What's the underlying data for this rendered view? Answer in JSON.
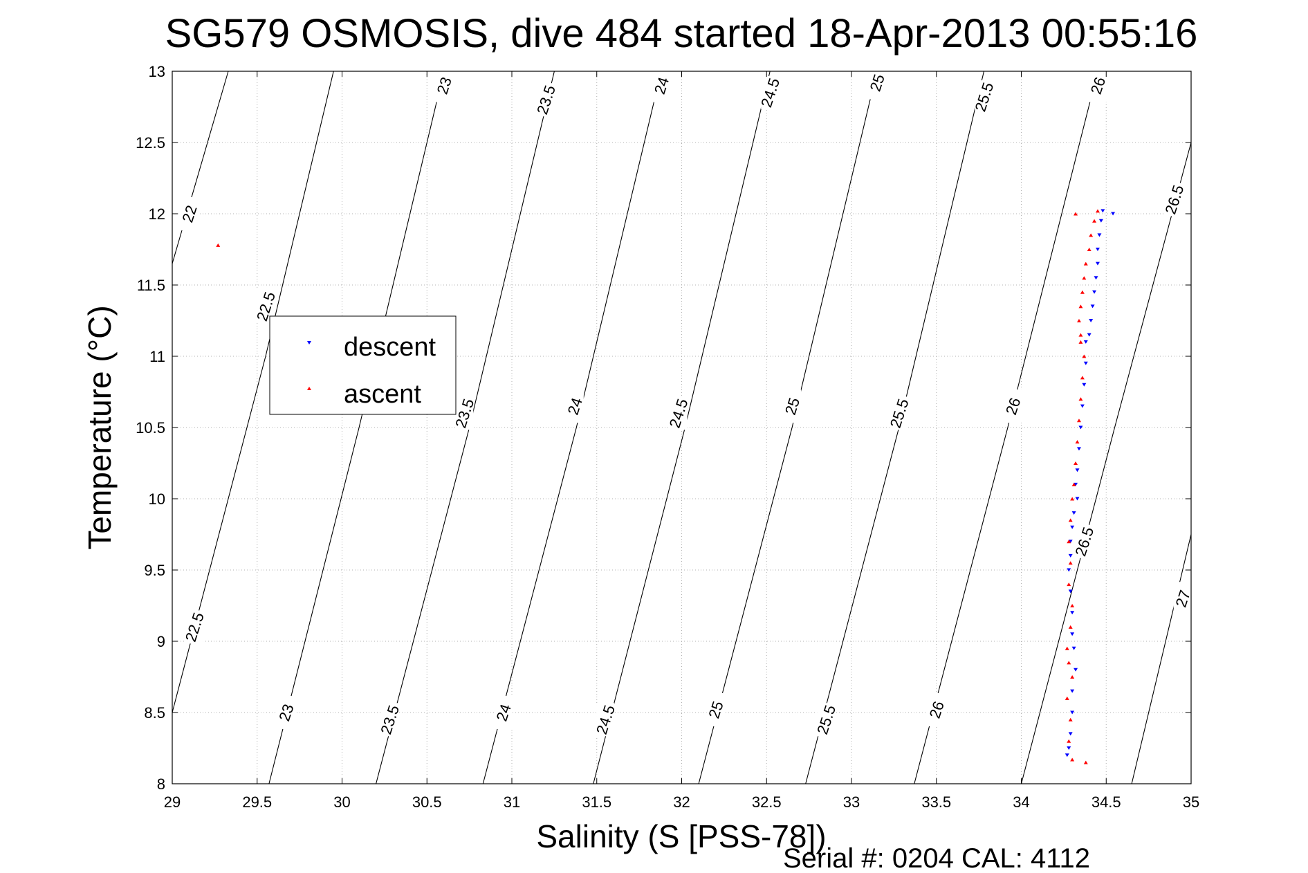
{
  "chart_data": {
    "type": "scatter",
    "title": "SG579 OSMOSIS, dive 484 started 18-Apr-2013 00:55:16",
    "xlabel": "Salinity (S [PSS-78])",
    "ylabel": "Temperature (°C)",
    "xlim": [
      29,
      35
    ],
    "ylim": [
      8,
      13
    ],
    "xticks": [
      29,
      29.5,
      30,
      30.5,
      31,
      31.5,
      32,
      32.5,
      33,
      33.5,
      34,
      34.5,
      35
    ],
    "xtick_labels": [
      "29",
      "29.5",
      "30",
      "30.5",
      "31",
      "31.5",
      "32",
      "32.5",
      "33",
      "33.5",
      "34",
      "34.5",
      "35"
    ],
    "yticks": [
      8,
      8.5,
      9,
      9.5,
      10,
      10.5,
      11,
      11.5,
      12,
      12.5,
      13
    ],
    "ytick_labels": [
      "8",
      "8.5",
      "9",
      "9.5",
      "10",
      "10.5",
      "11",
      "11.5",
      "12",
      "12.5",
      "13"
    ],
    "grid": true,
    "legend_position": "upper-left",
    "colors": {
      "descent": "#0000ff",
      "ascent": "#ff0000",
      "contour": "#000000"
    },
    "series": [
      {
        "name": "descent",
        "marker": "triangle-down",
        "points": [
          [
            34.48,
            12.02
          ],
          [
            34.47,
            11.95
          ],
          [
            34.46,
            11.85
          ],
          [
            34.45,
            11.75
          ],
          [
            34.45,
            11.65
          ],
          [
            34.44,
            11.55
          ],
          [
            34.43,
            11.45
          ],
          [
            34.42,
            11.35
          ],
          [
            34.41,
            11.25
          ],
          [
            34.4,
            11.15
          ],
          [
            34.38,
            11.1
          ],
          [
            34.38,
            10.95
          ],
          [
            34.37,
            10.8
          ],
          [
            34.36,
            10.65
          ],
          [
            34.35,
            10.5
          ],
          [
            34.34,
            10.35
          ],
          [
            34.33,
            10.2
          ],
          [
            34.32,
            10.1
          ],
          [
            34.33,
            10.0
          ],
          [
            34.31,
            9.9
          ],
          [
            34.3,
            9.8
          ],
          [
            34.29,
            9.7
          ],
          [
            34.29,
            9.6
          ],
          [
            34.28,
            9.5
          ],
          [
            34.29,
            9.35
          ],
          [
            34.3,
            9.2
          ],
          [
            34.3,
            9.05
          ],
          [
            34.31,
            8.95
          ],
          [
            34.32,
            8.8
          ],
          [
            34.3,
            8.65
          ],
          [
            34.3,
            8.5
          ],
          [
            34.29,
            8.35
          ],
          [
            34.28,
            8.25
          ],
          [
            34.27,
            8.2
          ],
          [
            34.54,
            12.0
          ]
        ]
      },
      {
        "name": "ascent",
        "marker": "triangle-up",
        "points": [
          [
            29.27,
            11.78
          ],
          [
            34.32,
            12.0
          ],
          [
            34.45,
            12.02
          ],
          [
            34.43,
            11.95
          ],
          [
            34.41,
            11.85
          ],
          [
            34.4,
            11.75
          ],
          [
            34.38,
            11.65
          ],
          [
            34.37,
            11.55
          ],
          [
            34.36,
            11.45
          ],
          [
            34.35,
            11.35
          ],
          [
            34.34,
            11.25
          ],
          [
            34.35,
            11.15
          ],
          [
            34.35,
            11.1
          ],
          [
            34.37,
            11.0
          ],
          [
            34.36,
            10.85
          ],
          [
            34.35,
            10.7
          ],
          [
            34.34,
            10.55
          ],
          [
            34.33,
            10.4
          ],
          [
            34.32,
            10.25
          ],
          [
            34.31,
            10.1
          ],
          [
            34.3,
            10.0
          ],
          [
            34.29,
            9.85
          ],
          [
            34.28,
            9.7
          ],
          [
            34.29,
            9.55
          ],
          [
            34.28,
            9.4
          ],
          [
            34.3,
            9.25
          ],
          [
            34.29,
            9.1
          ],
          [
            34.27,
            8.95
          ],
          [
            34.28,
            8.85
          ],
          [
            34.3,
            8.75
          ],
          [
            34.27,
            8.6
          ],
          [
            34.29,
            8.45
          ],
          [
            34.28,
            8.3
          ],
          [
            34.3,
            8.17
          ],
          [
            34.38,
            8.15
          ]
        ]
      }
    ],
    "contours": {
      "values": [
        22,
        22.5,
        23,
        23.5,
        24,
        24.5,
        25,
        25.5,
        26,
        26.5,
        27
      ],
      "labels": [
        "22",
        "22.5",
        "23",
        "23.5",
        "24",
        "24.5",
        "25",
        "25.5",
        "26",
        "26.5",
        "27"
      ],
      "lines": [
        {
          "value": "22",
          "points": [
            [
              29.0,
              11.65
            ],
            [
              29.33,
              13.0
            ]
          ]
        },
        {
          "value": "22.5",
          "points": [
            [
              29.0,
              8.5
            ],
            [
              29.55,
              11.0
            ],
            [
              29.95,
              13.0
            ]
          ]
        },
        {
          "value": "23",
          "points": [
            [
              29.57,
              8.0
            ],
            [
              30.1,
              10.5
            ],
            [
              30.6,
              13.0
            ]
          ]
        },
        {
          "value": "23.5",
          "points": [
            [
              30.2,
              8.0
            ],
            [
              30.75,
              10.5
            ],
            [
              31.25,
              13.0
            ]
          ]
        },
        {
          "value": "24",
          "points": [
            [
              30.83,
              8.0
            ],
            [
              31.38,
              10.5
            ],
            [
              31.88,
              13.0
            ]
          ]
        },
        {
          "value": "24.5",
          "points": [
            [
              31.48,
              8.0
            ],
            [
              32.02,
              10.5
            ],
            [
              32.52,
              13.0
            ]
          ]
        },
        {
          "value": "25",
          "points": [
            [
              32.1,
              8.0
            ],
            [
              32.65,
              10.5
            ],
            [
              33.15,
              13.0
            ]
          ]
        },
        {
          "value": "25.5",
          "points": [
            [
              32.73,
              8.0
            ],
            [
              33.28,
              10.5
            ],
            [
              33.78,
              13.0
            ]
          ]
        },
        {
          "value": "26",
          "points": [
            [
              33.37,
              8.0
            ],
            [
              33.92,
              10.5
            ],
            [
              34.45,
              13.0
            ]
          ]
        },
        {
          "value": "26.5",
          "points": [
            [
              34.0,
              8.0
            ],
            [
              34.55,
              10.5
            ],
            [
              35.0,
              12.5
            ]
          ]
        },
        {
          "value": "27",
          "points": [
            [
              34.65,
              8.0
            ],
            [
              35.0,
              9.75
            ]
          ]
        }
      ],
      "label_positions": [
        {
          "text": "22",
          "at": [
            29.1,
            12.0
          ]
        },
        {
          "text": "22.5",
          "at": [
            29.55,
            11.35
          ]
        },
        {
          "text": "22.5",
          "at": [
            29.13,
            9.1
          ]
        },
        {
          "text": "23",
          "at": [
            30.6,
            12.9
          ]
        },
        {
          "text": "23",
          "at": [
            29.67,
            8.5
          ]
        },
        {
          "text": "23.5",
          "at": [
            31.2,
            12.8
          ]
        },
        {
          "text": "23.5",
          "at": [
            30.72,
            10.6
          ]
        },
        {
          "text": "23.5",
          "at": [
            30.28,
            8.45
          ]
        },
        {
          "text": "24",
          "at": [
            31.88,
            12.9
          ]
        },
        {
          "text": "24",
          "at": [
            31.37,
            10.65
          ]
        },
        {
          "text": "24",
          "at": [
            30.95,
            8.5
          ]
        },
        {
          "text": "24.5",
          "at": [
            32.52,
            12.85
          ]
        },
        {
          "text": "24.5",
          "at": [
            31.98,
            10.6
          ]
        },
        {
          "text": "24.5",
          "at": [
            31.55,
            8.45
          ]
        },
        {
          "text": "25",
          "at": [
            33.15,
            12.92
          ]
        },
        {
          "text": "25",
          "at": [
            32.65,
            10.65
          ]
        },
        {
          "text": "25",
          "at": [
            32.2,
            8.52
          ]
        },
        {
          "text": "25.5",
          "at": [
            33.78,
            12.82
          ]
        },
        {
          "text": "25.5",
          "at": [
            33.28,
            10.6
          ]
        },
        {
          "text": "25.5",
          "at": [
            32.85,
            8.45
          ]
        },
        {
          "text": "26",
          "at": [
            34.45,
            12.9
          ]
        },
        {
          "text": "26",
          "at": [
            33.95,
            10.65
          ]
        },
        {
          "text": "26",
          "at": [
            33.5,
            8.52
          ]
        },
        {
          "text": "26.5",
          "at": [
            34.9,
            12.1
          ]
        },
        {
          "text": "26.5",
          "at": [
            34.37,
            9.7
          ]
        },
        {
          "text": "27",
          "at": [
            34.95,
            9.3
          ]
        }
      ]
    }
  },
  "footer": {
    "text": "Serial #: 0204  CAL: 4112"
  }
}
